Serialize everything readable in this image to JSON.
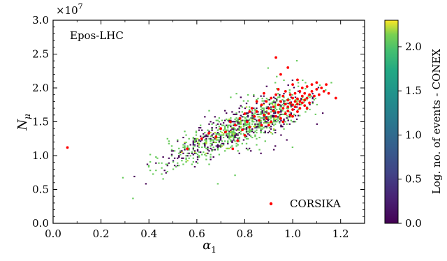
{
  "chart_data": {
    "type": "heatmap",
    "panel_label": "Epos-LHC",
    "xlabel_base": "α",
    "xlabel_sub": "1",
    "ylabel_base": "N",
    "ylabel_sub": "μ",
    "xlim": [
      0.0,
      1.3
    ],
    "ylim": [
      0.0,
      3.0
    ],
    "y_multiplier_base": "×10",
    "y_multiplier_exp": "7",
    "x_ticks": [
      "0.0",
      "0.2",
      "0.4",
      "0.6",
      "0.8",
      "1.0",
      "1.2"
    ],
    "x_tick_values": [
      0.0,
      0.2,
      0.4,
      0.6,
      0.8,
      1.0,
      1.2
    ],
    "y_ticks": [
      "0.0",
      "0.5",
      "1.0",
      "1.5",
      "2.0",
      "2.5",
      "3.0"
    ],
    "y_tick_values": [
      0.0,
      0.5,
      1.0,
      1.5,
      2.0,
      2.5,
      3.0
    ],
    "colorbar": {
      "label": "Log. no. of events - CONEX",
      "range": [
        0.0,
        2.3
      ],
      "ticks": [
        "0.0",
        "0.5",
        "1.0",
        "1.5",
        "2.0"
      ],
      "tick_values": [
        0.0,
        0.5,
        1.0,
        1.5,
        2.0
      ],
      "colormap": "viridis"
    },
    "heatmap_trend": {
      "description_points_alpha": [
        0.05,
        0.2,
        0.4,
        0.6,
        0.8,
        0.95,
        1.05,
        1.2
      ],
      "center_Nmu_1e7": [
        0.3,
        0.55,
        0.85,
        1.15,
        1.45,
        1.68,
        1.8,
        1.92
      ]
    },
    "series": [
      {
        "name": "CORSIKA",
        "color": "#ff0000",
        "marker": "dot",
        "points": [
          [
            0.06,
            1.12
          ],
          [
            0.56,
            1.1
          ],
          [
            0.62,
            1.25
          ],
          [
            0.65,
            1.33
          ],
          [
            0.68,
            1.28
          ],
          [
            0.7,
            1.4
          ],
          [
            0.72,
            1.35
          ],
          [
            0.74,
            1.5
          ],
          [
            0.75,
            1.1
          ],
          [
            0.76,
            1.45
          ],
          [
            0.78,
            1.55
          ],
          [
            0.79,
            1.38
          ],
          [
            0.8,
            1.62
          ],
          [
            0.81,
            1.5
          ],
          [
            0.82,
            1.42
          ],
          [
            0.83,
            1.7
          ],
          [
            0.84,
            1.58
          ],
          [
            0.85,
            1.65
          ],
          [
            0.86,
            1.52
          ],
          [
            0.87,
            1.75
          ],
          [
            0.87,
            1.45
          ],
          [
            0.88,
            1.6
          ],
          [
            0.89,
            1.8
          ],
          [
            0.89,
            1.55
          ],
          [
            0.9,
            1.7
          ],
          [
            0.9,
            1.62
          ],
          [
            0.91,
            1.85
          ],
          [
            0.91,
            1.5
          ],
          [
            0.92,
            1.66
          ],
          [
            0.92,
            1.72
          ],
          [
            0.93,
            1.58
          ],
          [
            0.93,
            1.9
          ],
          [
            0.94,
            1.75
          ],
          [
            0.94,
            1.64
          ],
          [
            0.95,
            1.8
          ],
          [
            0.95,
            1.55
          ],
          [
            0.95,
            2.2
          ],
          [
            0.96,
            1.7
          ],
          [
            0.96,
            1.88
          ],
          [
            0.97,
            1.76
          ],
          [
            0.97,
            1.62
          ],
          [
            0.97,
            1.95
          ],
          [
            0.98,
            1.72
          ],
          [
            0.98,
            1.82
          ],
          [
            0.98,
            1.66
          ],
          [
            0.99,
            1.78
          ],
          [
            0.99,
            1.9
          ],
          [
            0.99,
            1.6
          ],
          [
            1.0,
            1.75
          ],
          [
            1.0,
            1.85
          ],
          [
            1.0,
            1.68
          ],
          [
            1.0,
            2.05
          ],
          [
            1.01,
            1.8
          ],
          [
            1.01,
            1.72
          ],
          [
            1.01,
            1.92
          ],
          [
            1.02,
            1.76
          ],
          [
            1.02,
            1.84
          ],
          [
            1.02,
            1.65
          ],
          [
            1.03,
            1.8
          ],
          [
            1.03,
            1.95
          ],
          [
            1.03,
            1.7
          ],
          [
            1.04,
            1.78
          ],
          [
            1.04,
            1.88
          ],
          [
            1.04,
            2.0
          ],
          [
            1.05,
            1.82
          ],
          [
            1.05,
            1.74
          ],
          [
            1.05,
            1.92
          ],
          [
            1.06,
            1.85
          ],
          [
            1.06,
            2.02
          ],
          [
            1.07,
            1.9
          ],
          [
            1.07,
            1.78
          ],
          [
            1.08,
            1.95
          ],
          [
            1.08,
            2.05
          ],
          [
            1.09,
            1.88
          ],
          [
            1.1,
            1.98
          ],
          [
            1.1,
            2.08
          ],
          [
            1.11,
            1.9
          ],
          [
            1.12,
            2.0
          ],
          [
            1.13,
            1.95
          ],
          [
            1.14,
            2.05
          ],
          [
            1.15,
            1.92
          ],
          [
            0.98,
            2.3
          ],
          [
            0.93,
            2.45
          ],
          [
            1.18,
            1.85
          ],
          [
            0.85,
            1.8
          ],
          [
            0.88,
            1.92
          ],
          [
            0.96,
            1.5
          ],
          [
            1.0,
            1.58
          ],
          [
            0.8,
            1.3
          ],
          [
            0.9,
            1.45
          ],
          [
            1.02,
            2.12
          ],
          [
            1.06,
            1.7
          ],
          [
            0.94,
            1.98
          ],
          [
            0.82,
            1.65
          ],
          [
            0.77,
            1.22
          ]
        ]
      }
    ],
    "legend": {
      "entries": [
        "CORSIKA"
      ],
      "placement": "lower-right"
    }
  }
}
